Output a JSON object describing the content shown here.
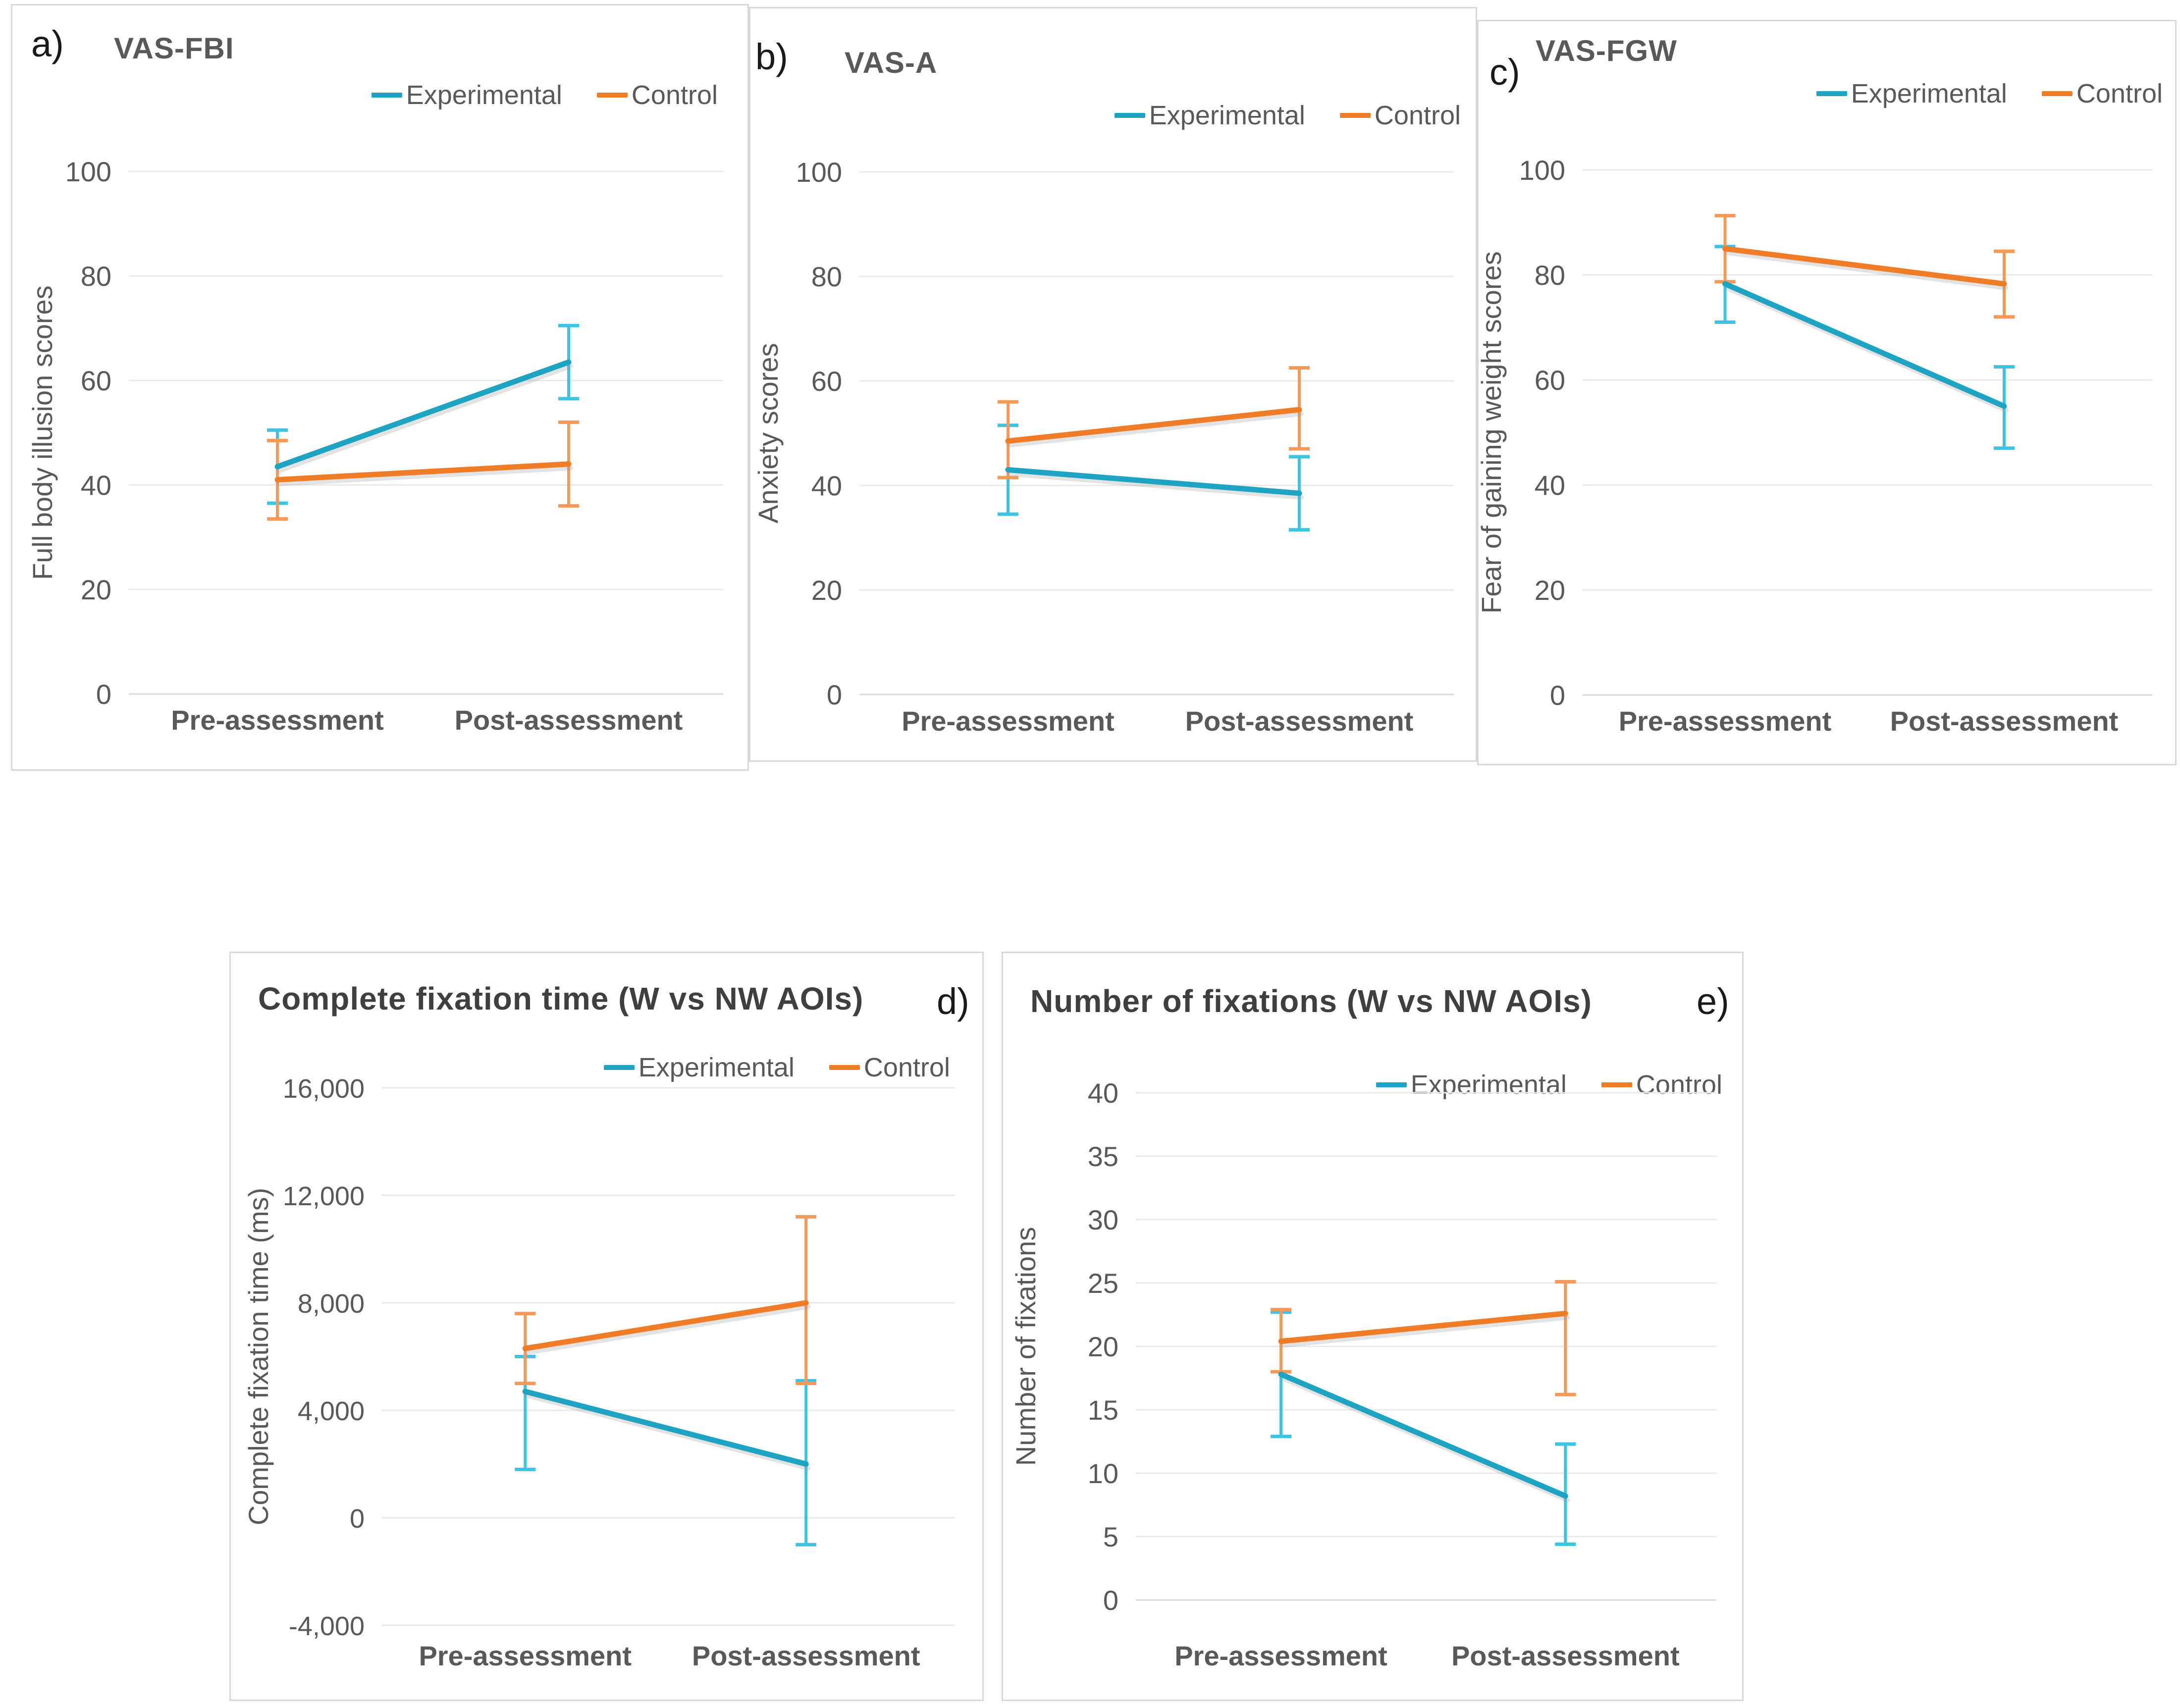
{
  "legend": {
    "experimental": "Experimental",
    "control": "Control"
  },
  "colors": {
    "experimental_line": "#1fa3c3",
    "experimental_error": "#3cc4e2",
    "control_line": "#ef7d28",
    "control_error": "#f3995a",
    "grid": "#e9e9e9",
    "axis": "#d9d9d9",
    "text": "#595959",
    "title": "#595959",
    "title_dark": "#3f3f3f",
    "panel_border": "#d9d9d9"
  },
  "chart_data": [
    {
      "id": "a",
      "label": "a)",
      "title": "VAS-FBI",
      "type": "line",
      "xlabel": "",
      "ylabel": "Full body illusion scores",
      "ylim": [
        0,
        100
      ],
      "ytick_step": 20,
      "grid": true,
      "legend_position": "top-right",
      "categories": [
        "Pre-assessment",
        "Post-assessment"
      ],
      "series": [
        {
          "name": "Experimental",
          "values": [
            43.5,
            63.5
          ],
          "err_lo": [
            36.5,
            56.5
          ],
          "err_hi": [
            50.5,
            70.5
          ]
        },
        {
          "name": "Control",
          "values": [
            41.0,
            44.0
          ],
          "err_lo": [
            33.5,
            36.0
          ],
          "err_hi": [
            48.5,
            52.0
          ]
        }
      ]
    },
    {
      "id": "b",
      "label": "b)",
      "title": "VAS-A",
      "type": "line",
      "xlabel": "",
      "ylabel": "Anxiety scores",
      "ylim": [
        0,
        100
      ],
      "ytick_step": 20,
      "grid": true,
      "legend_position": "top-right",
      "categories": [
        "Pre-assessment",
        "Post-assessment"
      ],
      "series": [
        {
          "name": "Experimental",
          "values": [
            43.0,
            38.5
          ],
          "err_lo": [
            34.5,
            31.5
          ],
          "err_hi": [
            51.5,
            45.5
          ]
        },
        {
          "name": "Control",
          "values": [
            48.5,
            54.5
          ],
          "err_lo": [
            41.5,
            47.0
          ],
          "err_hi": [
            56.0,
            62.5
          ]
        }
      ]
    },
    {
      "id": "c",
      "label": "c)",
      "title": "VAS-FGW",
      "type": "line",
      "xlabel": "",
      "ylabel": "Fear of gaining weight scores",
      "ylim": [
        0,
        100
      ],
      "ytick_step": 20,
      "grid": true,
      "legend_position": "top-right",
      "categories": [
        "Pre-assessment",
        "Post-assessment"
      ],
      "series": [
        {
          "name": "Experimental",
          "values": [
            78.3,
            55.0
          ],
          "err_lo": [
            71.0,
            47.0
          ],
          "err_hi": [
            85.4,
            62.5
          ]
        },
        {
          "name": "Control",
          "values": [
            85.0,
            78.3
          ],
          "err_lo": [
            78.7,
            72.0
          ],
          "err_hi": [
            91.3,
            84.5
          ]
        }
      ]
    },
    {
      "id": "d",
      "label": "d)",
      "title": "Complete fixation time (W vs NW AOIs)",
      "type": "line",
      "xlabel": "",
      "ylabel": "Complete fixation time (ms)",
      "ylim": [
        -4000,
        16000
      ],
      "ytick_step": 4000,
      "grid": true,
      "legend_position": "top-right",
      "categories": [
        "Pre-assessment",
        "Post-assessment"
      ],
      "series": [
        {
          "name": "Experimental",
          "values": [
            4700,
            2000
          ],
          "err_lo": [
            1800,
            -1000
          ],
          "err_hi": [
            6000,
            5100
          ]
        },
        {
          "name": "Control",
          "values": [
            6300,
            8000
          ],
          "err_lo": [
            5000,
            5000
          ],
          "err_hi": [
            7600,
            11200
          ]
        }
      ]
    },
    {
      "id": "e",
      "label": "e)",
      "title": "Number of fixations (W vs NW AOIs)",
      "type": "line",
      "xlabel": "",
      "ylabel": "Number of fixations",
      "ylim": [
        0,
        40
      ],
      "ytick_step": 5,
      "grid": true,
      "legend_position": "top-right",
      "categories": [
        "Pre-assessment",
        "Post-assessment"
      ],
      "series": [
        {
          "name": "Experimental",
          "values": [
            17.8,
            8.2
          ],
          "err_lo": [
            12.9,
            4.4
          ],
          "err_hi": [
            22.7,
            12.3
          ]
        },
        {
          "name": "Control",
          "values": [
            20.4,
            22.6
          ],
          "err_lo": [
            18.0,
            16.2
          ],
          "err_hi": [
            22.9,
            25.1
          ]
        }
      ]
    }
  ]
}
